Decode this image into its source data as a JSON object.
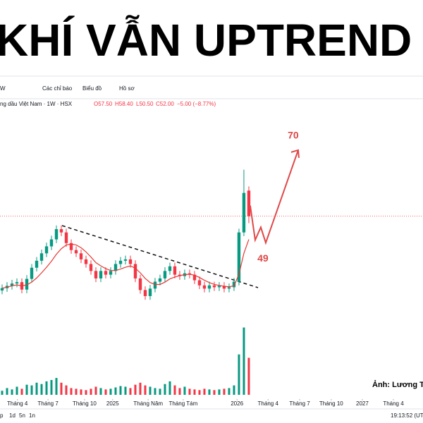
{
  "header": {
    "title": "KHÍ VẪN UPTREND"
  },
  "toolbar": [
    "W",
    "Các chỉ báo",
    "Biểu đồ",
    "Hồ sơ"
  ],
  "symbol_line": "ng dầu Việt Nam · 1W · HSX",
  "ohlc": [
    "O57.50",
    "H58.40",
    "L50.50",
    "C52.00",
    "−5.00 (−8.77%)"
  ],
  "credit": "Ảnh: Lương T",
  "time": "19:13:52 (UTC",
  "range_buttons": [
    "p",
    "1d",
    "5n",
    "1n"
  ],
  "chart_data": {
    "type": "candlestick",
    "x": [
      0,
      1,
      2,
      3,
      4,
      5,
      6,
      7,
      8,
      9,
      10,
      11,
      12,
      13,
      14,
      15,
      16,
      17,
      18,
      19,
      20,
      21,
      22,
      23,
      24,
      25,
      26,
      27,
      28,
      29,
      30,
      31,
      32,
      33,
      34,
      35,
      36,
      37,
      38,
      39,
      40,
      41,
      42,
      43,
      44,
      45,
      46,
      47,
      48,
      49,
      50
    ],
    "open": [
      36,
      36.5,
      37,
      37.5,
      37.8,
      36.2,
      38.5,
      40.9,
      42.4,
      44,
      45.5,
      47,
      49.2,
      48.5,
      46.2,
      44.7,
      44,
      42.7,
      41.7,
      40.2,
      38.6,
      40.2,
      39.4,
      40.2,
      41.7,
      42.4,
      42.7,
      41.7,
      38.6,
      36.1,
      34.8,
      36.4,
      37.9,
      38.6,
      40.2,
      41.2,
      39.4,
      39.1,
      39.7,
      39.4,
      38.2,
      37.1,
      36.4,
      37.1,
      36.7,
      37,
      36.4,
      36.7,
      37.9,
      48.5,
      57.5
    ],
    "high": [
      37.3,
      37.8,
      38.3,
      38.6,
      38.6,
      39.3,
      41.7,
      43.2,
      44.8,
      46.3,
      47.8,
      50,
      50,
      49.3,
      47,
      45.5,
      44.8,
      43.5,
      42.5,
      41,
      41,
      41,
      41,
      42.5,
      43.2,
      43.5,
      43.5,
      42.5,
      39.4,
      36.9,
      37.2,
      38.7,
      39.4,
      41,
      42,
      42,
      40.2,
      40.5,
      40.5,
      40.2,
      39,
      37.9,
      37.9,
      37.9,
      37.8,
      37.8,
      37.5,
      38.7,
      49.3,
      62,
      58.4
    ],
    "low": [
      35.2,
      35.7,
      36.2,
      36.7,
      35.4,
      35.4,
      37.7,
      40.1,
      41.6,
      43.2,
      44.7,
      46.2,
      47.7,
      45.4,
      43.9,
      43.2,
      41.9,
      40.9,
      39.4,
      37.8,
      37.8,
      38.6,
      38.6,
      39.4,
      40.9,
      41.6,
      40.9,
      37.8,
      35.3,
      34,
      34,
      35.6,
      37.1,
      37.8,
      39.4,
      38.6,
      38.3,
      38.3,
      38.6,
      37.4,
      36.3,
      35.6,
      35.6,
      35.9,
      35.9,
      35.6,
      35.6,
      35.9,
      37.1,
      47.7,
      50.5
    ],
    "close": [
      36.5,
      37,
      37.5,
      37.8,
      36.2,
      38.5,
      40.9,
      42.4,
      44,
      45.5,
      47,
      49.2,
      48.5,
      46.2,
      44.7,
      44,
      42.7,
      41.7,
      40.2,
      38.6,
      40.2,
      39.4,
      40.2,
      41.7,
      42.4,
      42.7,
      41.7,
      38.6,
      36.1,
      34.8,
      36.4,
      37.9,
      38.6,
      40.2,
      41.2,
      39.4,
      39.1,
      39.7,
      39.4,
      38.2,
      37.1,
      36.4,
      37.1,
      36.7,
      37,
      36.4,
      36.7,
      37.9,
      48.5,
      57,
      52
    ],
    "up_color": "#089981",
    "down_color": "#f23645",
    "ma": {
      "color": "#e53935",
      "values": [
        36.5,
        36.7,
        37,
        37.2,
        37,
        37.2,
        37.8,
        38.7,
        39.8,
        41,
        42.3,
        43.8,
        45,
        45.8,
        46,
        45.8,
        45.2,
        44.3,
        43.2,
        42,
        41.3,
        40.7,
        40.3,
        40.3,
        40.6,
        41,
        41.3,
        40.8,
        39.8,
        38.6,
        37.7,
        37.3,
        37.3,
        37.8,
        38.5,
        38.9,
        39.2,
        39.4,
        39.5,
        39.3,
        38.8,
        38.2,
        37.7,
        37.3,
        37.1,
        36.9,
        36.8,
        37,
        39.5,
        44,
        47
      ]
    },
    "volume": {
      "values": [
        6,
        10,
        8,
        12,
        9,
        15,
        14,
        18,
        16,
        20,
        22,
        25,
        18,
        14,
        10,
        9,
        8,
        7,
        9,
        12,
        10,
        8,
        9,
        11,
        13,
        12,
        10,
        15,
        18,
        14,
        12,
        10,
        9,
        16,
        20,
        14,
        10,
        12,
        9,
        8,
        7,
        9,
        8,
        7,
        8,
        9,
        10,
        14,
        60,
        100,
        55
      ]
    },
    "vlim": [
      0,
      110
    ],
    "ylim": [
      31,
      75
    ],
    "xlim": [
      -0.43,
      85.3
    ],
    "xticks": [
      {
        "value": 3.1,
        "label": "Tháng 4"
      },
      {
        "value": 9.3,
        "label": "Tháng 7"
      },
      {
        "value": 16.7,
        "label": "Tháng 10"
      },
      {
        "value": 22.4,
        "label": "2025"
      },
      {
        "value": 29.6,
        "label": "Tháng Năm"
      },
      {
        "value": 36.7,
        "label": "Tháng Tám"
      },
      {
        "value": 47.6,
        "label": "2026"
      },
      {
        "value": 53.9,
        "label": "Tháng 4"
      },
      {
        "value": 60.3,
        "label": "Tháng 7"
      },
      {
        "value": 66.7,
        "label": "Tháng 10"
      },
      {
        "value": 73,
        "label": "2027"
      },
      {
        "value": 79.3,
        "label": "Tháng 4"
      }
    ],
    "targets": [
      70,
      49
    ],
    "target_color": "#e04848"
  }
}
